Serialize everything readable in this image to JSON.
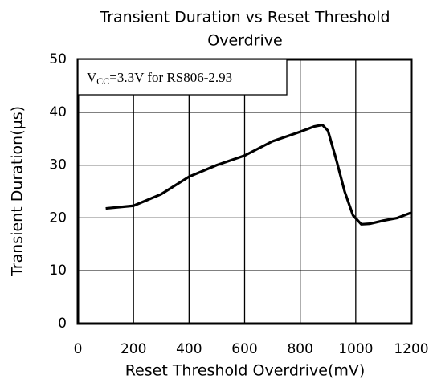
{
  "chart_data": {
    "type": "line",
    "title": [
      "Transient Duration vs Reset Threshold",
      "Overdrive"
    ],
    "xlabel": "Reset Threshold Overdrive(mV)",
    "ylabel": "Transient Duration(µs)",
    "annotation": {
      "main": "V",
      "subscript": "CC",
      "rest": "=3.3V for RS806-2.93"
    },
    "xlim": [
      0,
      1200
    ],
    "xticks": [
      0,
      200,
      400,
      600,
      800,
      1000,
      1200
    ],
    "ylim": [
      0,
      50
    ],
    "yticks": [
      0,
      10,
      20,
      30,
      40,
      50
    ],
    "grid": true,
    "series": [
      {
        "color": "#000000",
        "x": [
          100,
          200,
          300,
          400,
          500,
          600,
          700,
          800,
          850,
          880,
          900,
          930,
          960,
          990,
          1020,
          1050,
          1100,
          1150,
          1200
        ],
        "values": [
          21.8,
          22.3,
          24.5,
          27.8,
          30,
          31.8,
          34.5,
          36.3,
          37.3,
          37.6,
          36.5,
          31,
          25,
          20.5,
          18.8,
          18.9,
          19.5,
          20,
          21
        ]
      }
    ]
  }
}
